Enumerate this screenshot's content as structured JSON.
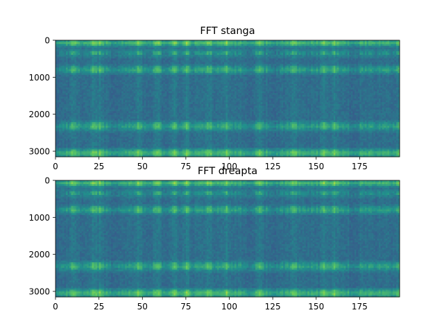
{
  "chart_data": [
    {
      "type": "heatmap",
      "title": "FFT stanga",
      "xlim": [
        0,
        198
      ],
      "ylim": [
        3150,
        0
      ],
      "xticks": [
        0,
        25,
        50,
        75,
        100,
        125,
        150,
        175
      ],
      "yticks": [
        0,
        1000,
        2000,
        3000
      ],
      "colormap": "viridis",
      "grid": false,
      "bands": [
        {
          "y": [
            0,
            150
          ],
          "level": "high"
        },
        {
          "y": [
            250,
            450
          ],
          "level": "medium"
        },
        {
          "y": [
            700,
            900
          ],
          "level": "medium-high"
        },
        {
          "y": [
            2200,
            2450
          ],
          "level": "medium-high"
        },
        {
          "y": [
            2950,
            3150
          ],
          "level": "high"
        }
      ],
      "bright_columns": [
        10,
        21,
        25,
        47,
        58,
        68,
        75,
        88,
        98,
        117,
        137,
        154,
        160,
        198
      ],
      "dark_columns": [
        2,
        33,
        112,
        126,
        171
      ]
    },
    {
      "type": "heatmap",
      "title": "FFT dreapta",
      "xlim": [
        0,
        198
      ],
      "ylim": [
        3150,
        0
      ],
      "xticks": [
        0,
        25,
        50,
        75,
        100,
        125,
        150,
        175
      ],
      "yticks": [
        0,
        1000,
        2000,
        3000
      ],
      "colormap": "viridis",
      "grid": false,
      "bands": [
        {
          "y": [
            0,
            150
          ],
          "level": "high"
        },
        {
          "y": [
            250,
            450
          ],
          "level": "medium"
        },
        {
          "y": [
            700,
            900
          ],
          "level": "medium-high"
        },
        {
          "y": [
            2200,
            2450
          ],
          "level": "medium-high"
        },
        {
          "y": [
            2950,
            3150
          ],
          "level": "high"
        }
      ],
      "bright_columns": [
        10,
        21,
        25,
        47,
        58,
        68,
        75,
        88,
        98,
        117,
        137,
        154,
        160,
        198
      ],
      "dark_columns": [
        2,
        33,
        112,
        126,
        171
      ]
    }
  ]
}
